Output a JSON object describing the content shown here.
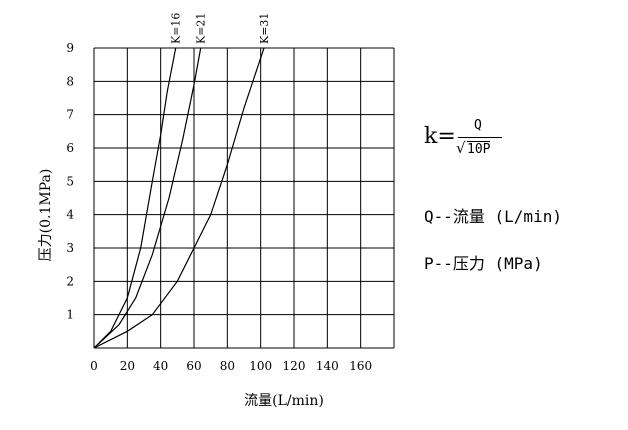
{
  "chart_data": {
    "type": "line",
    "xlabel": "流量(L/min)",
    "ylabel": "压力(0.1MPa)",
    "xlim": [
      0,
      180
    ],
    "ylim": [
      0,
      9
    ],
    "x_ticks": [
      "0",
      "20",
      "40",
      "60",
      "80",
      "100",
      "120",
      "140",
      "160"
    ],
    "y_ticks": [
      "1",
      "2",
      "3",
      "4",
      "5",
      "6",
      "7",
      "8",
      "9"
    ],
    "grid": true,
    "series": [
      {
        "name": "K=16",
        "points": [
          [
            0,
            0
          ],
          [
            10,
            0.5
          ],
          [
            20,
            1.5
          ],
          [
            28,
            3.0
          ],
          [
            35,
            5.0
          ],
          [
            40,
            6.4
          ],
          [
            44,
            7.7
          ],
          [
            49,
            9.0
          ]
        ]
      },
      {
        "name": "K=21",
        "points": [
          [
            0,
            0
          ],
          [
            15,
            0.7
          ],
          [
            25,
            1.5
          ],
          [
            35,
            2.8
          ],
          [
            45,
            4.5
          ],
          [
            53,
            6.2
          ],
          [
            60,
            7.9
          ],
          [
            64,
            9.0
          ]
        ]
      },
      {
        "name": "K=31",
        "points": [
          [
            0,
            0
          ],
          [
            20,
            0.5
          ],
          [
            35,
            1.0
          ],
          [
            50,
            2.0
          ],
          [
            60,
            3.0
          ],
          [
            70,
            4.0
          ],
          [
            80,
            5.5
          ],
          [
            90,
            7.2
          ],
          [
            102,
            9.0
          ]
        ]
      }
    ]
  },
  "legend": {
    "formula_lhs": "k=",
    "formula_numerator": "Q",
    "formula_radical": "√",
    "formula_denominator": "10P",
    "q_line": "Q--流量 (L/min)",
    "p_line": "P--压力 (MPa)"
  }
}
